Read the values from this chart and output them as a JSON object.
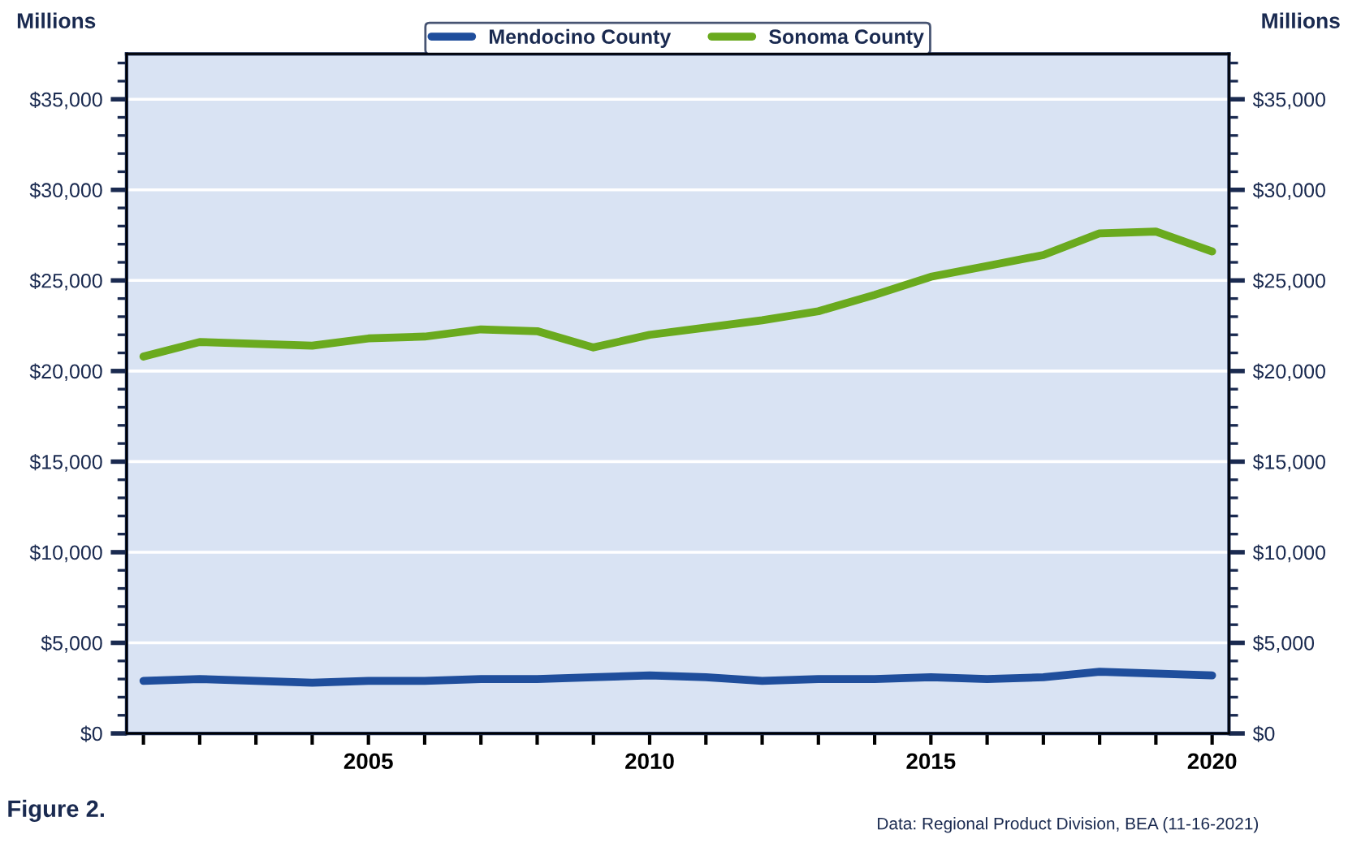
{
  "chart_data": {
    "type": "line",
    "ylabel": "Millions",
    "y2label": "Millions",
    "x": [
      2001,
      2002,
      2003,
      2004,
      2005,
      2006,
      2007,
      2008,
      2009,
      2010,
      2011,
      2012,
      2013,
      2014,
      2015,
      2016,
      2017,
      2018,
      2019,
      2020
    ],
    "series": [
      {
        "name": "Mendocino County",
        "color": "#1f4e9c",
        "values": [
          2900,
          3000,
          2900,
          2800,
          2900,
          2900,
          3000,
          3000,
          3100,
          3200,
          3100,
          2900,
          3000,
          3000,
          3100,
          3000,
          3100,
          3400,
          3300,
          3200
        ]
      },
      {
        "name": "Sonoma County",
        "color": "#6aaa1e",
        "values": [
          20800,
          21600,
          21500,
          21400,
          21800,
          21900,
          22300,
          22200,
          21300,
          22000,
          22400,
          22800,
          23300,
          24200,
          25200,
          25800,
          26400,
          27600,
          27700,
          26600
        ]
      }
    ],
    "xlim": [
      2000.7,
      2020.3
    ],
    "xticks": [
      {
        "value": 2001,
        "label": null
      },
      {
        "value": 2002,
        "label": null
      },
      {
        "value": 2003,
        "label": null
      },
      {
        "value": 2004,
        "label": null
      },
      2005,
      {
        "value": 2006,
        "label": null
      },
      {
        "value": 2007,
        "label": null
      },
      {
        "value": 2008,
        "label": null
      },
      {
        "value": 2009,
        "label": null
      },
      2010,
      {
        "value": 2011,
        "label": null
      },
      {
        "value": 2012,
        "label": null
      },
      {
        "value": 2013,
        "label": null
      },
      {
        "value": 2014,
        "label": null
      },
      2015,
      {
        "value": 2016,
        "label": null
      },
      {
        "value": 2017,
        "label": null
      },
      {
        "value": 2018,
        "label": null
      },
      {
        "value": 2019,
        "label": null
      },
      2020
    ],
    "ylim": [
      0,
      37500
    ],
    "yticks": [
      {
        "value": 0,
        "label": "$0"
      },
      {
        "value": 5000,
        "label": "$5,000"
      },
      {
        "value": 10000,
        "label": "$10,000"
      },
      {
        "value": 15000,
        "label": "$15,000"
      },
      {
        "value": 20000,
        "label": "$20,000"
      },
      {
        "value": 25000,
        "label": "$25,000"
      },
      {
        "value": 30000,
        "label": "$30,000"
      },
      {
        "value": 35000,
        "label": "$35,000"
      }
    ],
    "y2lim": [
      0,
      37500
    ],
    "y2ticks": [
      {
        "value": 0,
        "label": "$0"
      },
      {
        "value": 5000,
        "label": "$5,000"
      },
      {
        "value": 10000,
        "label": "$10,000"
      },
      {
        "value": 15000,
        "label": "$15,000"
      },
      {
        "value": 20000,
        "label": "$20,000"
      },
      {
        "value": 25000,
        "label": "$25,000"
      },
      {
        "value": 30000,
        "label": "$30,000"
      },
      {
        "value": 35000,
        "label": "$35,000"
      }
    ],
    "grid": "y",
    "legend": "top",
    "marker": "none",
    "line_style": "solid",
    "annotations": [
      "Figure 2.",
      "Data: Regional Product Division, BEA (11-16-2021)"
    ]
  }
}
